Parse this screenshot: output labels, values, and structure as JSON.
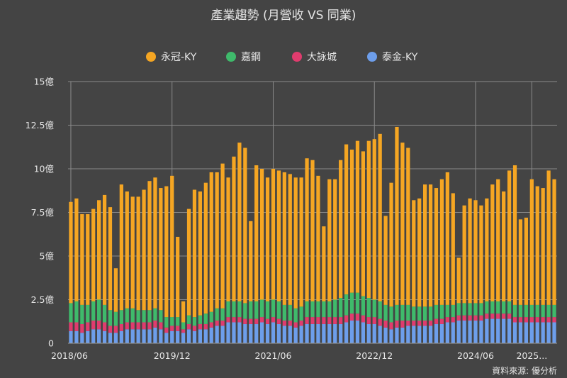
{
  "colors": {
    "background": "#444444",
    "grid": "#8a8a8a",
    "series": [
      "#f5a623",
      "#3fba6b",
      "#e03c6e",
      "#6d9eeb"
    ]
  },
  "source_label": "資料來源: 優分析",
  "chart_data": {
    "type": "bar",
    "stacked": true,
    "title": "產業趨勢 (月營收 VS 同業)",
    "xlabel": "",
    "ylabel": "",
    "ylim": [
      0,
      15
    ],
    "grid": true,
    "legend_position": "top-center",
    "y_ticks": [
      {
        "value": 0,
        "label": "0"
      },
      {
        "value": 2.5,
        "label": "2.5億"
      },
      {
        "value": 5,
        "label": "5億"
      },
      {
        "value": 7.5,
        "label": "7.5億"
      },
      {
        "value": 10,
        "label": "10億"
      },
      {
        "value": 12.5,
        "label": "12.5億"
      },
      {
        "value": 15,
        "label": "15億"
      }
    ],
    "x_ticks": [
      {
        "index": 0,
        "label": "2018/06"
      },
      {
        "index": 18,
        "label": "2019/12"
      },
      {
        "index": 36,
        "label": "2021/06"
      },
      {
        "index": 54,
        "label": "2022/12"
      },
      {
        "index": 72,
        "label": "2024/06"
      },
      {
        "index": 82,
        "label": "2025..."
      }
    ],
    "series_order_bottom_to_top": [
      "泰金-KY",
      "大詠城",
      "嘉鋼",
      "永冠-KY"
    ],
    "series": [
      {
        "name": "永冠-KY",
        "color": "#f5a623",
        "totals": [
          8.1,
          8.3,
          7.4,
          7.4,
          7.7,
          8.2,
          8.5,
          7.8,
          4.3,
          9.1,
          8.7,
          8.4,
          8.4,
          8.8,
          9.3,
          9.5,
          8.9,
          9.0,
          9.6,
          6.1,
          2.4,
          7.7,
          8.8,
          8.7,
          9.2,
          9.8,
          9.8,
          10.3,
          9.5,
          10.7,
          11.5,
          11.2,
          7.0,
          10.2,
          10.0,
          9.5,
          10.0,
          9.9,
          9.8,
          9.7,
          9.5,
          9.5,
          10.6,
          10.5,
          9.6,
          6.7,
          9.4,
          9.4,
          10.5,
          11.4,
          11.1,
          11.6,
          11.0,
          11.6,
          11.7,
          12.0,
          7.3,
          9.2,
          12.4,
          11.5,
          11.2,
          8.2,
          8.3,
          9.1,
          9.1,
          8.9,
          9.4,
          9.8,
          8.6,
          4.9,
          7.9,
          8.3,
          8.2,
          7.9,
          8.3,
          9.1,
          9.4,
          8.7,
          9.9,
          10.2,
          7.1,
          7.2,
          9.4,
          9.0,
          8.9,
          9.9,
          9.4
        ]
      },
      {
        "name": "嘉鋼",
        "values": [
          1.1,
          1.2,
          1.1,
          1.0,
          1.1,
          1.2,
          1.0,
          0.9,
          0.8,
          0.8,
          0.8,
          0.8,
          0.7,
          0.7,
          0.7,
          0.7,
          0.7,
          0.6,
          0.5,
          0.5,
          0.4,
          0.5,
          0.5,
          0.5,
          0.6,
          0.6,
          0.7,
          0.7,
          0.9,
          0.9,
          0.9,
          0.9,
          1.0,
          1.0,
          1.0,
          1.0,
          1.0,
          1.0,
          0.9,
          0.9,
          0.8,
          0.8,
          0.9,
          0.9,
          0.9,
          0.9,
          0.9,
          1.0,
          1.1,
          1.2,
          1.2,
          1.2,
          1.1,
          1.1,
          1.0,
          1.0,
          0.9,
          0.9,
          0.9,
          0.9,
          0.9,
          0.8,
          0.8,
          0.8,
          0.8,
          0.8,
          0.8,
          0.7,
          0.7,
          0.7,
          0.7,
          0.7,
          0.7,
          0.7,
          0.7,
          0.7,
          0.7,
          0.7,
          0.7,
          0.7,
          0.7,
          0.7,
          0.7,
          0.7,
          0.7,
          0.7,
          0.7
        ],
        "color": "#3fba6b"
      },
      {
        "name": "大詠城",
        "values": [
          0.5,
          0.5,
          0.5,
          0.5,
          0.5,
          0.5,
          0.5,
          0.4,
          0.4,
          0.4,
          0.4,
          0.4,
          0.4,
          0.4,
          0.4,
          0.4,
          0.4,
          0.3,
          0.3,
          0.3,
          0.2,
          0.3,
          0.3,
          0.3,
          0.3,
          0.3,
          0.3,
          0.3,
          0.3,
          0.3,
          0.3,
          0.3,
          0.3,
          0.3,
          0.3,
          0.3,
          0.3,
          0.3,
          0.3,
          0.3,
          0.3,
          0.3,
          0.4,
          0.4,
          0.4,
          0.4,
          0.4,
          0.4,
          0.4,
          0.4,
          0.4,
          0.4,
          0.4,
          0.4,
          0.4,
          0.4,
          0.4,
          0.4,
          0.4,
          0.4,
          0.3,
          0.3,
          0.3,
          0.3,
          0.3,
          0.3,
          0.3,
          0.3,
          0.3,
          0.3,
          0.3,
          0.3,
          0.3,
          0.3,
          0.3,
          0.3,
          0.3,
          0.3,
          0.3,
          0.3,
          0.3,
          0.3,
          0.3,
          0.3,
          0.3,
          0.3,
          0.3
        ],
        "color": "#e03c6e"
      },
      {
        "name": "泰金-KY",
        "values": [
          0.7,
          0.7,
          0.6,
          0.7,
          0.8,
          0.8,
          0.7,
          0.6,
          0.6,
          0.7,
          0.8,
          0.8,
          0.8,
          0.8,
          0.8,
          0.9,
          0.8,
          0.6,
          0.7,
          0.7,
          0.6,
          0.8,
          0.7,
          0.8,
          0.8,
          0.9,
          1.0,
          1.0,
          1.2,
          1.2,
          1.2,
          1.1,
          1.1,
          1.1,
          1.2,
          1.1,
          1.2,
          1.1,
          1.0,
          1.0,
          0.9,
          1.0,
          1.1,
          1.1,
          1.1,
          1.1,
          1.1,
          1.1,
          1.1,
          1.2,
          1.3,
          1.3,
          1.2,
          1.1,
          1.1,
          1.0,
          0.9,
          0.8,
          0.9,
          0.9,
          1.0,
          1.0,
          1.0,
          1.0,
          1.0,
          1.1,
          1.1,
          1.2,
          1.2,
          1.3,
          1.3,
          1.3,
          1.3,
          1.3,
          1.4,
          1.4,
          1.4,
          1.4,
          1.4,
          1.2,
          1.2,
          1.2,
          1.2,
          1.2,
          1.2,
          1.2,
          1.2
        ],
        "color": "#6d9eeb"
      }
    ]
  }
}
